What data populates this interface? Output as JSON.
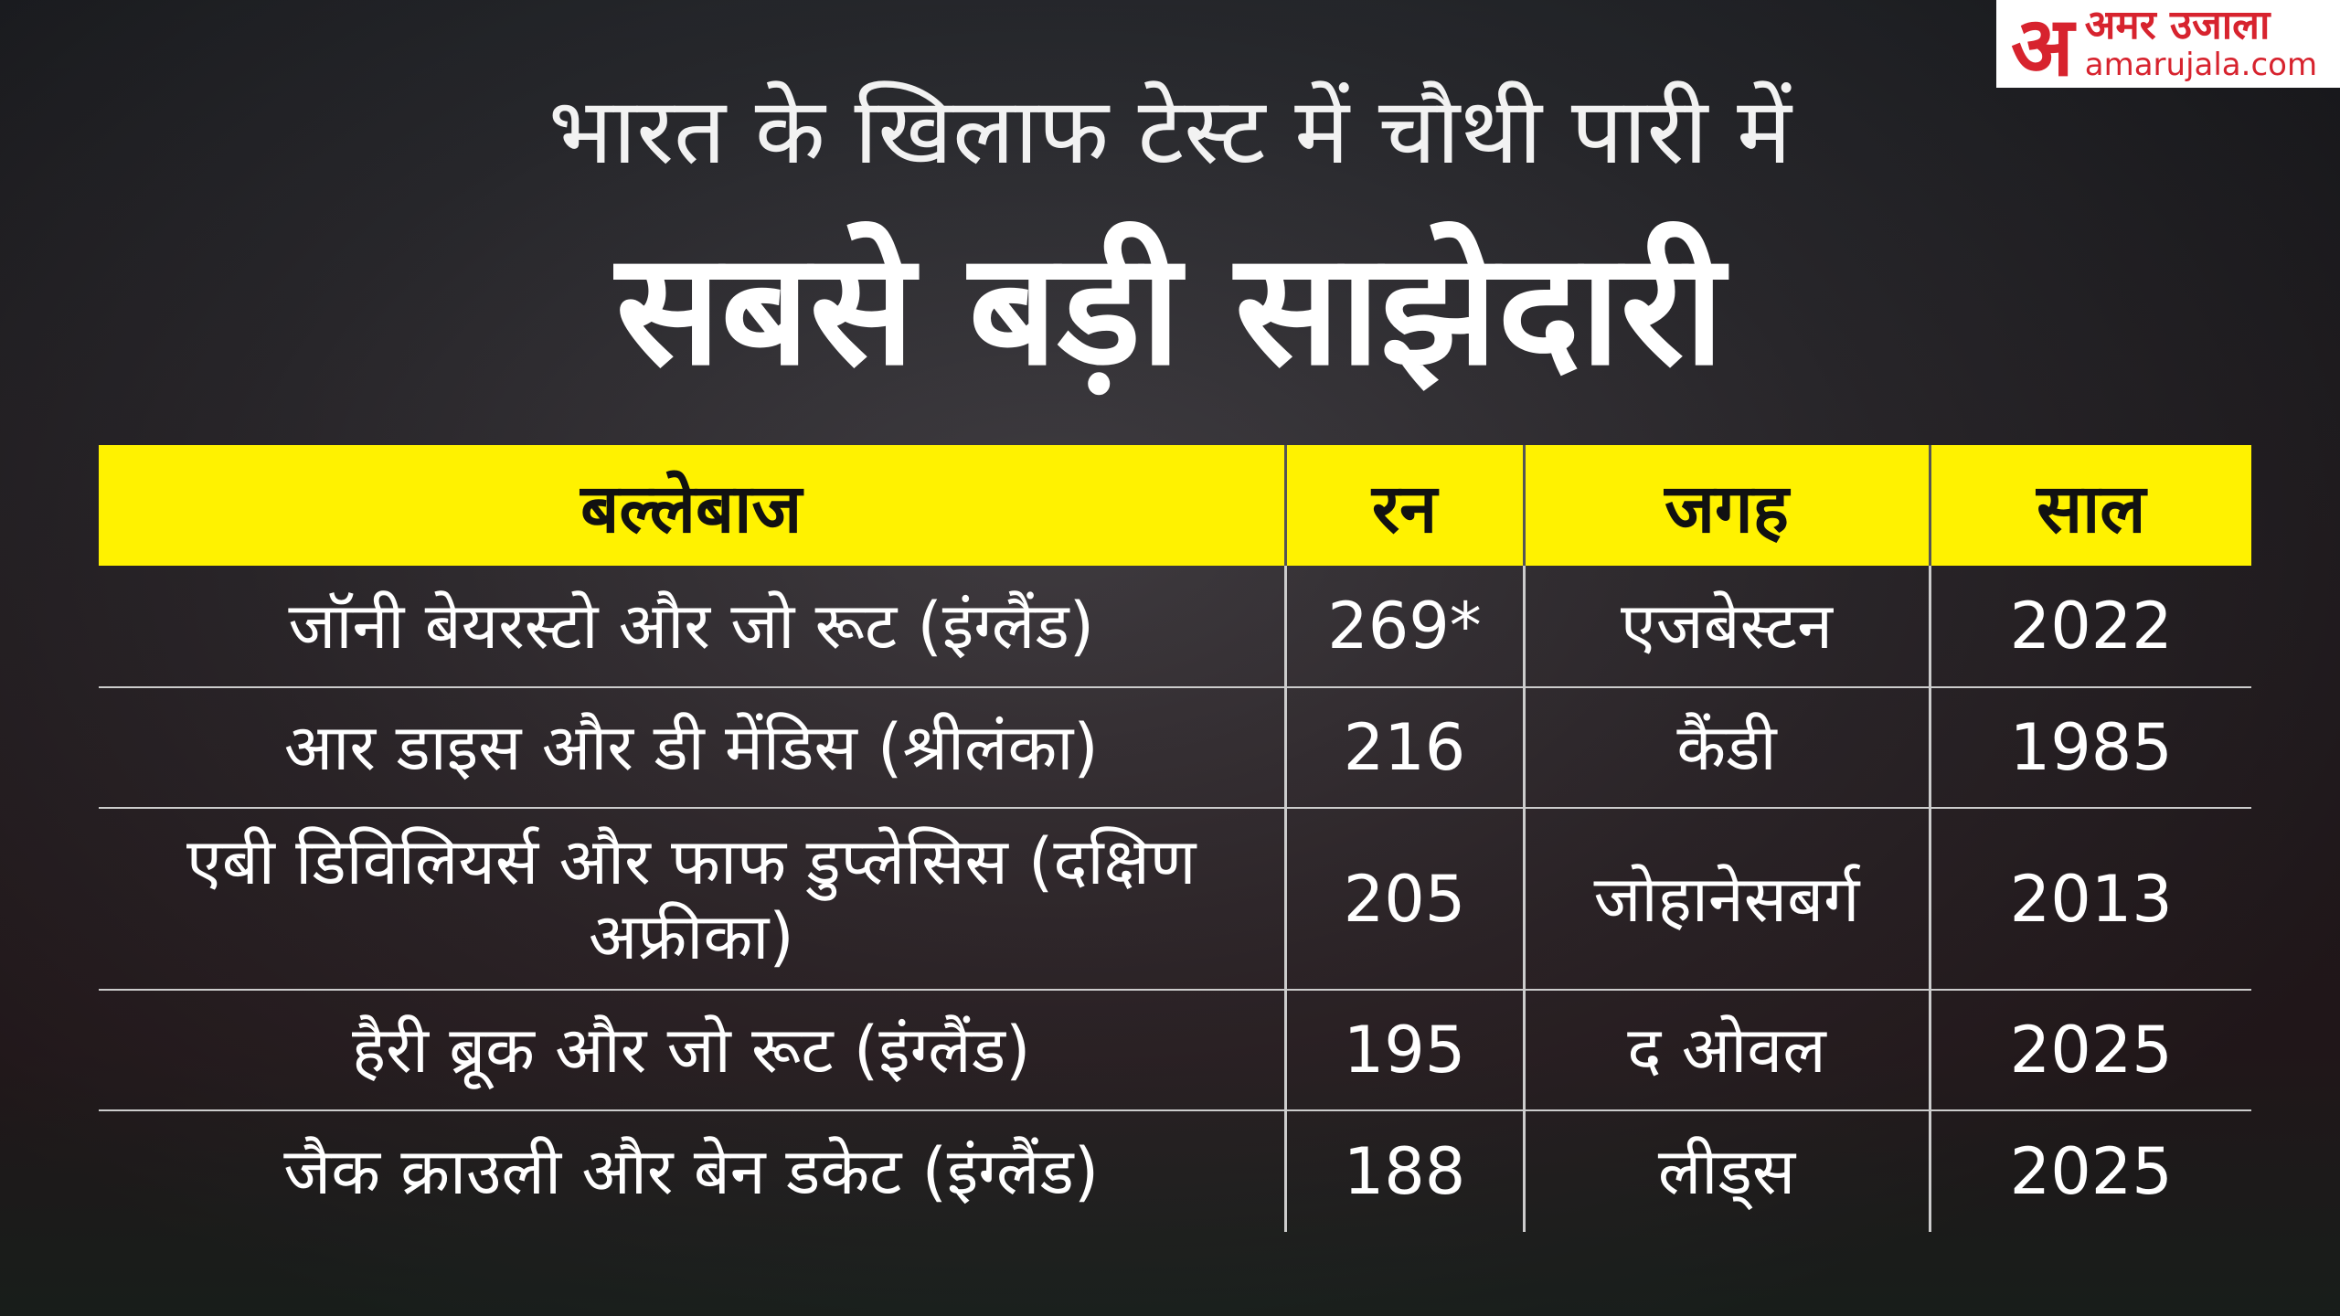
{
  "header": {
    "subtitle": "भारत के खिलाफ टेस्ट में चौथी पारी में",
    "title": "सबसे बड़ी साझेदारी"
  },
  "logo": {
    "mark": "अ",
    "name": "अमर उजाला",
    "site": "amarujala.com"
  },
  "table": {
    "columns": [
      "बल्लेबाज",
      "रन",
      "जगह",
      "साल"
    ],
    "rows": [
      [
        "जॉनी बेयरस्टो और जो रूट (इंग्लैंड)",
        "269*",
        "एजबेस्टन",
        "2022"
      ],
      [
        "आर डाइस और डी मेंडिस (श्रीलंका)",
        "216",
        "कैंडी",
        "1985"
      ],
      [
        "एबी डिविलियर्स और फाफ डुप्लेसिस (दक्षिण अफ्रीका)",
        "205",
        "जोहानेसबर्ग",
        "2013"
      ],
      [
        "हैरी ब्रूक और जो रूट (इंग्लैंड)",
        "195",
        "द ओवल",
        "2025"
      ],
      [
        "जैक क्राउली और बेन डकेट (इंग्लैंड)",
        "188",
        "लीड्स",
        "2025"
      ]
    ]
  }
}
